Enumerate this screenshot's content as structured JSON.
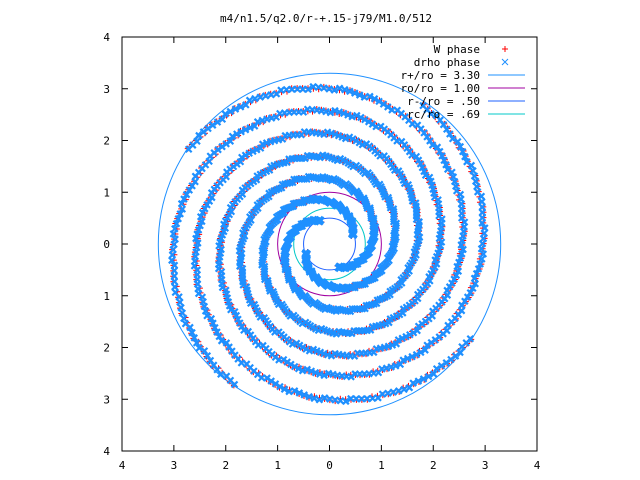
{
  "chart_data": {
    "type": "scatter",
    "title": "m4/n1.5/q2.0/r-+.15-j79/M1.0/512",
    "xlabel": "",
    "ylabel": "",
    "xlim": [
      -4,
      4
    ],
    "ylim": [
      -4,
      4
    ],
    "x_ticks": [
      -4,
      -3,
      -2,
      -1,
      0,
      1,
      2,
      3,
      4
    ],
    "x_tick_labels": [
      "4",
      "3",
      "2",
      "1",
      "0",
      "1",
      "2",
      "3",
      "4"
    ],
    "y_ticks": [
      4,
      3,
      2,
      1,
      0,
      -1,
      -2,
      -3,
      -4
    ],
    "y_tick_labels": [
      "4",
      "3",
      "2",
      "1",
      "0",
      "1",
      "2",
      "3",
      "4"
    ],
    "grid": false,
    "legend_position": "top-right",
    "series": [
      {
        "name": "W phase",
        "kind": "points",
        "marker": "+",
        "color": "#ff0000",
        "spiral_arms": [
          {
            "start_angle_deg": 110,
            "r_start": 0.45,
            "r_end": 3.25,
            "turns": 1.6
          },
          {
            "start_angle_deg": 200,
            "r_start": 0.45,
            "r_end": 3.2,
            "turns": 1.6
          },
          {
            "start_angle_deg": 290,
            "r_start": 0.45,
            "r_end": 3.25,
            "turns": 1.6
          },
          {
            "start_angle_deg": 20,
            "r_start": 0.45,
            "r_end": 3.25,
            "turns": 1.6
          }
        ]
      },
      {
        "name": "drho phase",
        "kind": "points",
        "marker": "x",
        "color": "#1e90ff",
        "spiral_arms": [
          {
            "start_angle_deg": 110,
            "r_start": 0.45,
            "r_end": 3.25,
            "turns": 1.6
          },
          {
            "start_angle_deg": 200,
            "r_start": 0.45,
            "r_end": 3.2,
            "turns": 1.6
          },
          {
            "start_angle_deg": 290,
            "r_start": 0.45,
            "r_end": 3.25,
            "turns": 1.6
          },
          {
            "start_angle_deg": 20,
            "r_start": 0.45,
            "r_end": 3.25,
            "turns": 1.6
          }
        ]
      },
      {
        "name": "r+/ro = 3.30",
        "kind": "circle",
        "radius": 3.3,
        "color": "#1e90ff"
      },
      {
        "name": "ro/ro = 1.00",
        "kind": "circle",
        "radius": 1.0,
        "color": "#a000a0"
      },
      {
        "name": "r-/ro = .50",
        "kind": "circle",
        "radius": 0.5,
        "color": "#1e60ff"
      },
      {
        "name": "rc/ro = .69",
        "kind": "circle",
        "radius": 0.69,
        "color": "#00c8c8"
      }
    ]
  }
}
